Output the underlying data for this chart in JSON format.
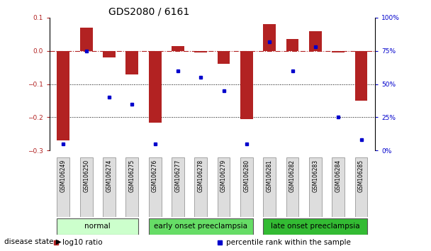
{
  "title": "GDS2080 / 6161",
  "samples": [
    "GSM106249",
    "GSM106250",
    "GSM106274",
    "GSM106275",
    "GSM106276",
    "GSM106277",
    "GSM106278",
    "GSM106279",
    "GSM106280",
    "GSM106281",
    "GSM106282",
    "GSM106283",
    "GSM106284",
    "GSM106285"
  ],
  "log10_ratio": [
    -0.27,
    0.07,
    -0.02,
    -0.07,
    -0.215,
    0.015,
    -0.005,
    -0.04,
    -0.205,
    0.08,
    0.035,
    0.06,
    -0.005,
    -0.15
  ],
  "percentile_rank": [
    5,
    75,
    40,
    35,
    5,
    60,
    55,
    45,
    5,
    82,
    60,
    78,
    25,
    8
  ],
  "bar_color": "#b22222",
  "dot_color": "#0000cc",
  "ylim_left": [
    -0.3,
    0.1
  ],
  "ylim_right": [
    0,
    100
  ],
  "yticks_left": [
    -0.3,
    -0.2,
    -0.1,
    0.0,
    0.1
  ],
  "yticks_right": [
    0,
    25,
    50,
    75,
    100
  ],
  "yticklabels_right": [
    "0%",
    "25%",
    "50%",
    "75%",
    "100%"
  ],
  "hline_y": 0.0,
  "dotted_lines": [
    -0.1,
    -0.2
  ],
  "groups": [
    {
      "label": "normal",
      "start": 0,
      "end": 3,
      "color": "#ccffcc"
    },
    {
      "label": "early onset preeclampsia",
      "start": 4,
      "end": 8,
      "color": "#66dd66"
    },
    {
      "label": "late onset preeclampsia",
      "start": 9,
      "end": 13,
      "color": "#33bb33"
    }
  ],
  "disease_state_label": "disease state",
  "legend_items": [
    {
      "label": "log10 ratio",
      "color": "#b22222"
    },
    {
      "label": "percentile rank within the sample",
      "color": "#0000cc"
    }
  ],
  "bar_width": 0.55,
  "title_fontsize": 10,
  "tick_fontsize": 6.5,
  "group_label_fontsize": 7.5,
  "legend_fontsize": 7.5,
  "sample_fontsize": 5.5
}
